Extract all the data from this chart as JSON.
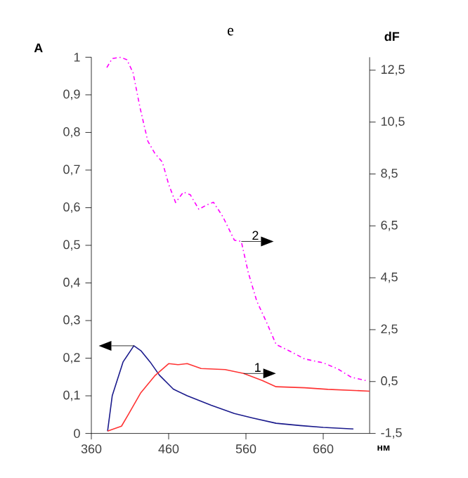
{
  "chart_data": {
    "type": "line",
    "title": "e",
    "xlabel": "нм",
    "ylabel": "A",
    "y2label": "dF",
    "xlim": [
      360,
      720
    ],
    "xticks": [
      360,
      460,
      560,
      660
    ],
    "ylim": [
      0,
      1
    ],
    "yticks": [
      0,
      {
        "value": 0.1,
        "label": "0,1"
      },
      {
        "value": 0.2,
        "label": "0,2"
      },
      {
        "value": 0.3,
        "label": "0,3"
      },
      {
        "value": 0.4,
        "label": "0,4"
      },
      {
        "value": 0.5,
        "label": "0,5"
      },
      {
        "value": 0.6,
        "label": "0,6"
      },
      {
        "value": 0.7,
        "label": "0,7"
      },
      {
        "value": 0.8,
        "label": "0,8"
      },
      {
        "value": 0.9,
        "label": "0,9"
      },
      1
    ],
    "y2lim": [
      -1.5,
      13
    ],
    "y2ticks": [
      {
        "value": -1.5,
        "label": "-1,5"
      },
      {
        "value": 0.5,
        "label": "0,5"
      },
      {
        "value": 2.5,
        "label": "2,5"
      },
      {
        "value": 4.5,
        "label": "4,5"
      },
      {
        "value": 6.5,
        "label": "6,5"
      },
      {
        "value": 8.5,
        "label": "8,5"
      },
      {
        "value": 10.5,
        "label": "10,5"
      },
      {
        "value": 12.5,
        "label": "12,5"
      }
    ],
    "marker": "none",
    "series": [
      {
        "color": "#1a1a8c",
        "line_style": "solid",
        "x": [
          381,
          387,
          401,
          415,
          424,
          436,
          448,
          466,
          484,
          515,
          545,
          569,
          599,
          630,
          660,
          699
        ],
        "values": [
          0.006,
          0.1,
          0.19,
          0.233,
          0.22,
          0.19,
          0.155,
          0.118,
          0.1,
          0.075,
          0.053,
          0.041,
          0.027,
          0.021,
          0.016,
          0.012
        ]
      },
      {
        "color": "#ff3333",
        "line_style": "solid",
        "axis": "y2",
        "x": [
          381,
          399,
          408,
          424,
          442,
          460,
          472,
          484,
          502,
          533,
          557,
          581,
          599,
          636,
          666,
          720
        ],
        "values": [
          -1.41,
          -1.22,
          -0.76,
          0.07,
          0.72,
          1.19,
          1.15,
          1.19,
          1.0,
          0.96,
          0.81,
          0.54,
          0.3,
          0.26,
          0.2,
          0.13
        ]
      },
      {
        "color": "#ff00ff",
        "line_style": "dashed",
        "axis": "y2",
        "x": [
          380,
          387,
          398,
          406,
          414,
          423,
          433,
          442,
          452,
          460,
          469,
          479,
          488,
          499,
          510,
          518,
          530,
          545,
          554,
          563,
          574,
          587,
          599,
          618,
          636,
          660,
          678,
          696,
          715
        ],
        "values": [
          12.6,
          12.95,
          13.0,
          12.9,
          12.4,
          11.05,
          9.77,
          9.3,
          8.95,
          8.1,
          7.4,
          7.8,
          7.7,
          7.14,
          7.32,
          7.41,
          6.86,
          5.95,
          5.9,
          4.7,
          3.6,
          2.76,
          1.93,
          1.65,
          1.37,
          1.22,
          1.0,
          0.67,
          0.54
        ]
      }
    ],
    "annotations": [
      "1",
      "2"
    ]
  }
}
